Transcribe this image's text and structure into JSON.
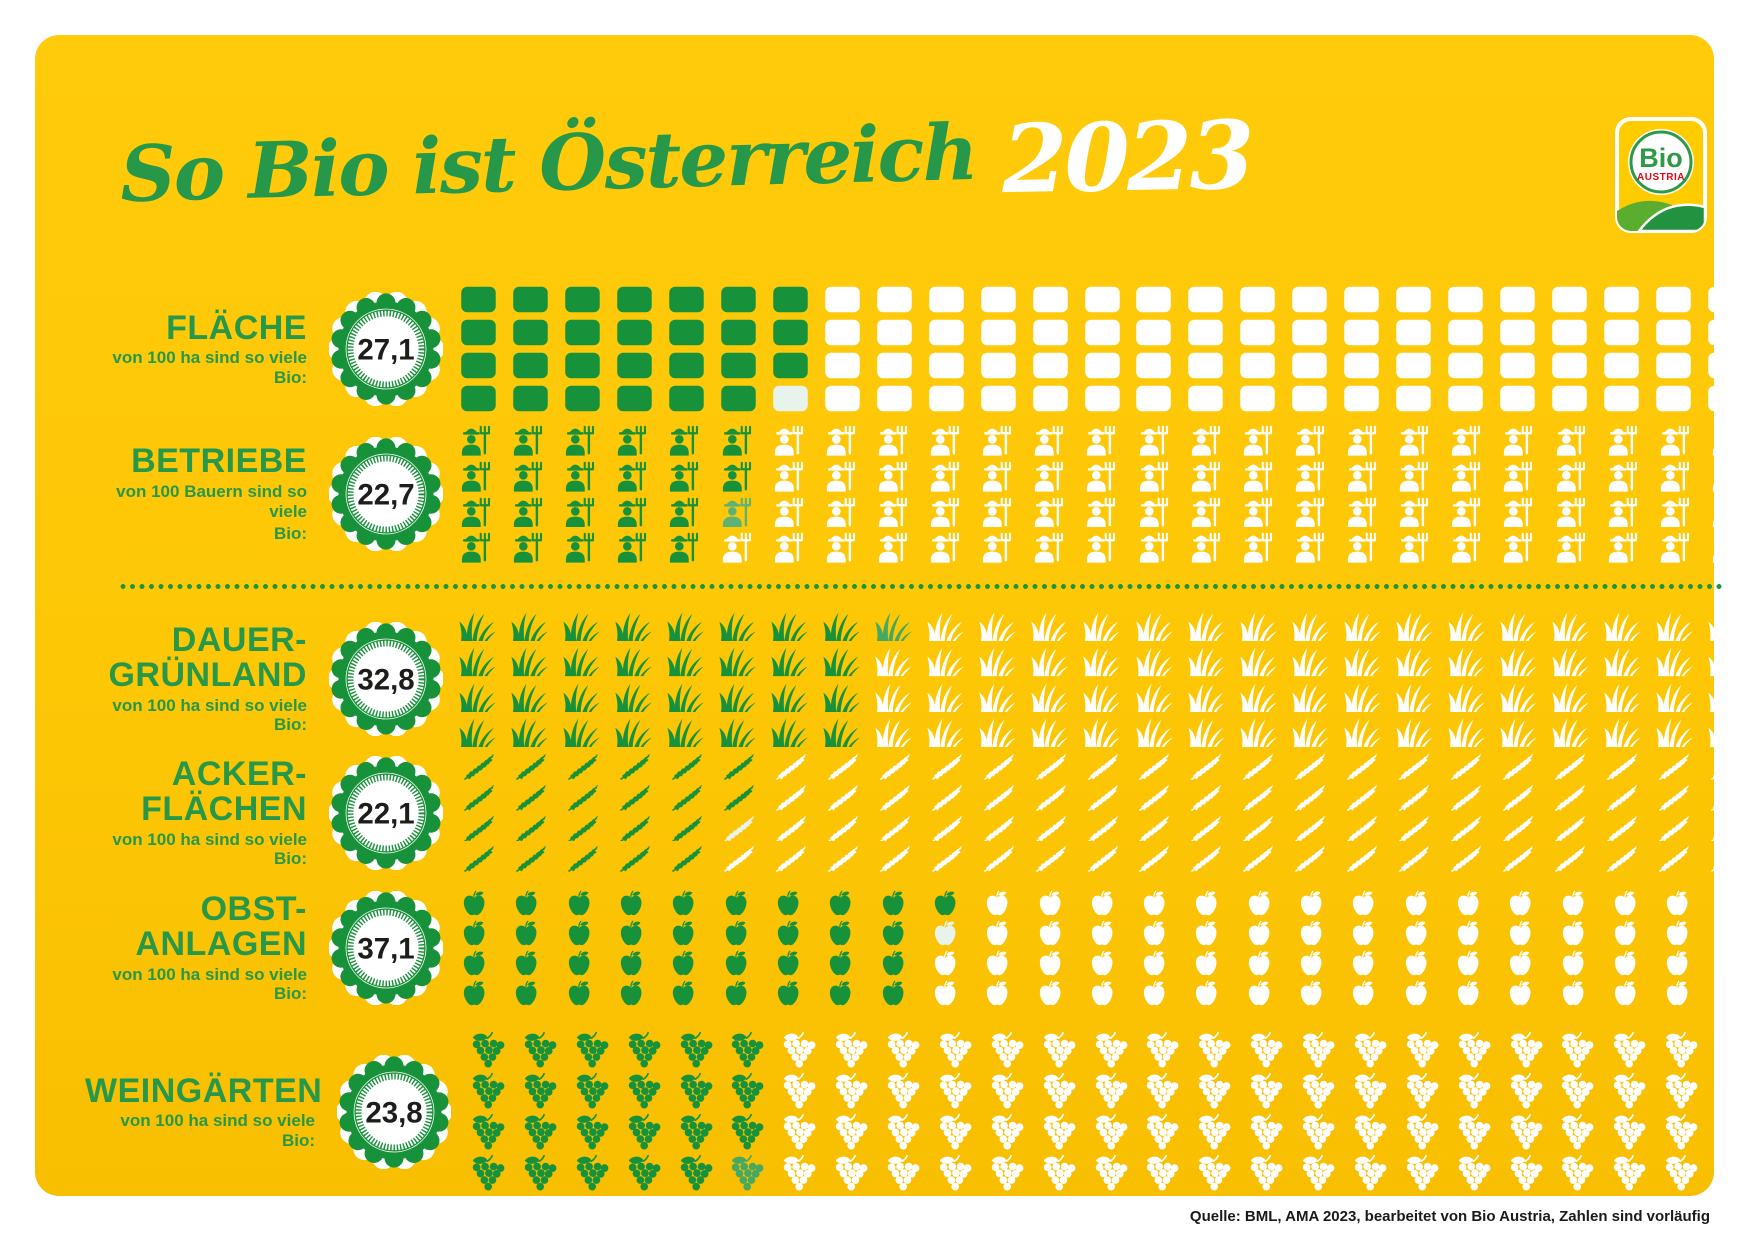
{
  "title": {
    "main": "So Bio ist Österreich",
    "year": "2023"
  },
  "logo": {
    "brand": "Bio",
    "region": "AUSTRIA"
  },
  "source": "Quelle: BML, AMA 2023, bearbeitet von Bio Austria, Zahlen sind vorläufig",
  "colors": {
    "yellow": "#FDC706",
    "icon_green": "#18923A",
    "text_green": "#27984A",
    "white": "#FFFFFF",
    "badge_number": "#1D1D1B",
    "logo_red": "#E30613",
    "logo_hill_light": "#5BAD2F",
    "logo_hill_dark": "#229140"
  },
  "chart_data": {
    "type": "pictogram",
    "title": "So Bio ist Österreich 2023",
    "unit_total": 100,
    "grid": {
      "columns": 25,
      "rows": 4,
      "fill_order": "column-major"
    },
    "legend": "green icons = organic share, white icons = rest, partial icon = decimal fraction",
    "rows": [
      {
        "id": "flaeche",
        "label_lines": [
          "FLÄCHE"
        ],
        "sublabel_lines": [
          "von 100 ha sind so viele Bio:"
        ],
        "value": 27.1,
        "value_label": "27,1",
        "icon": "square"
      },
      {
        "id": "betriebe",
        "label_lines": [
          "BETRIEBE"
        ],
        "sublabel_lines": [
          "von 100 Bauern sind so viele",
          "Bio:"
        ],
        "value": 22.7,
        "value_label": "22,7",
        "icon": "farmer"
      },
      {
        "id": "dauergruenland",
        "label_lines": [
          "DAUER-",
          "GRÜNLAND"
        ],
        "sublabel_lines": [
          "von 100 ha sind so viele Bio:"
        ],
        "value": 32.8,
        "value_label": "32,8",
        "icon": "grass"
      },
      {
        "id": "ackerflaechen",
        "label_lines": [
          "ACKER-",
          "FLÄCHEN"
        ],
        "sublabel_lines": [
          "von 100 ha sind so viele Bio:"
        ],
        "value": 22.1,
        "value_label": "22,1",
        "icon": "wheat"
      },
      {
        "id": "obstanlagen",
        "label_lines": [
          "OBST-",
          "ANLAGEN"
        ],
        "sublabel_lines": [
          "von 100 ha sind so viele Bio:"
        ],
        "value": 37.1,
        "value_label": "37,1",
        "icon": "apple"
      },
      {
        "id": "weingaerten",
        "label_lines": [
          "WEINGÄRTEN"
        ],
        "sublabel_lines": [
          "von 100 ha sind so viele Bio:"
        ],
        "value": 23.8,
        "value_label": "23,8",
        "icon": "grape"
      }
    ]
  }
}
